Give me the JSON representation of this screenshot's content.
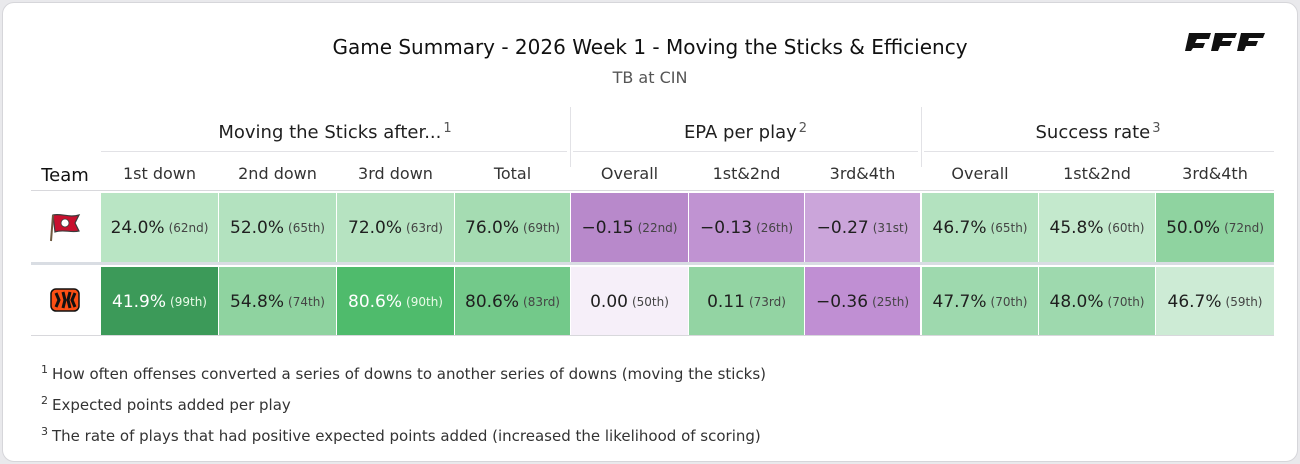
{
  "title": "Game Summary - 2026 Week 1 - Moving the Sticks & Efficiency",
  "subtitle": "TB at CIN",
  "brand": "PFF",
  "groups": [
    {
      "label": "Moving the Sticks after...",
      "note": "1"
    },
    {
      "label": "EPA per play",
      "note": "2"
    },
    {
      "label": "Success rate",
      "note": "3"
    }
  ],
  "team_header": "Team",
  "columns": [
    "1st down",
    "2nd down",
    "3rd down",
    "Total",
    "Overall",
    "1st&2nd",
    "3rd&4th",
    "Overall",
    "1st&2nd",
    "3rd&4th"
  ],
  "rows": [
    {
      "team_icon": "buccaneers-flag-icon",
      "cells": [
        {
          "value": "24.0%",
          "rank": "(62nd)",
          "color": "#b9e5c4"
        },
        {
          "value": "52.0%",
          "rank": "(65th)",
          "color": "#b3e2bf"
        },
        {
          "value": "72.0%",
          "rank": "(63rd)",
          "color": "#b6e3c1"
        },
        {
          "value": "76.0%",
          "rank": "(69th)",
          "color": "#a5dcb2"
        },
        {
          "value": "−0.15",
          "rank": "(22nd)",
          "color": "#b889cb"
        },
        {
          "value": "−0.13",
          "rank": "(26th)",
          "color": "#c093d2"
        },
        {
          "value": "−0.27",
          "rank": "(31st)",
          "color": "#cba5da"
        },
        {
          "value": "46.7%",
          "rank": "(65th)",
          "color": "#b3e2bf"
        },
        {
          "value": "45.8%",
          "rank": "(60th)",
          "color": "#c4e9cd"
        },
        {
          "value": "50.0%",
          "rank": "(72nd)",
          "color": "#8fd3a0"
        }
      ]
    },
    {
      "team_icon": "bengals-stripes-icon",
      "cells": [
        {
          "value": "41.9%",
          "rank": "(99th)",
          "color": "#3c9a59",
          "dark": true
        },
        {
          "value": "54.8%",
          "rank": "(74th)",
          "color": "#8fd3a0"
        },
        {
          "value": "80.6%",
          "rank": "(90th)",
          "color": "#4fbb6c",
          "dark": true
        },
        {
          "value": "80.6%",
          "rank": "(83rd)",
          "color": "#73c98a"
        },
        {
          "value": "0.00",
          "rank": "(50th)",
          "color": "#f6eff9"
        },
        {
          "value": "0.11",
          "rank": "(73rd)",
          "color": "#93d4a3"
        },
        {
          "value": "−0.36",
          "rank": "(25th)",
          "color": "#c08fd3"
        },
        {
          "value": "47.7%",
          "rank": "(70th)",
          "color": "#9ed9ae"
        },
        {
          "value": "48.0%",
          "rank": "(70th)",
          "color": "#9ed9ae"
        },
        {
          "value": "46.7%",
          "rank": "(59th)",
          "color": "#cdebd5"
        }
      ]
    }
  ],
  "footnotes": [
    {
      "num": "1",
      "text": "How often offenses converted a series of downs to another series of downs (moving the sticks)"
    },
    {
      "num": "2",
      "text": "Expected points added per play"
    },
    {
      "num": "3",
      "text": "The rate of plays that had positive expected points added (increased the likelihood of scoring)"
    }
  ]
}
